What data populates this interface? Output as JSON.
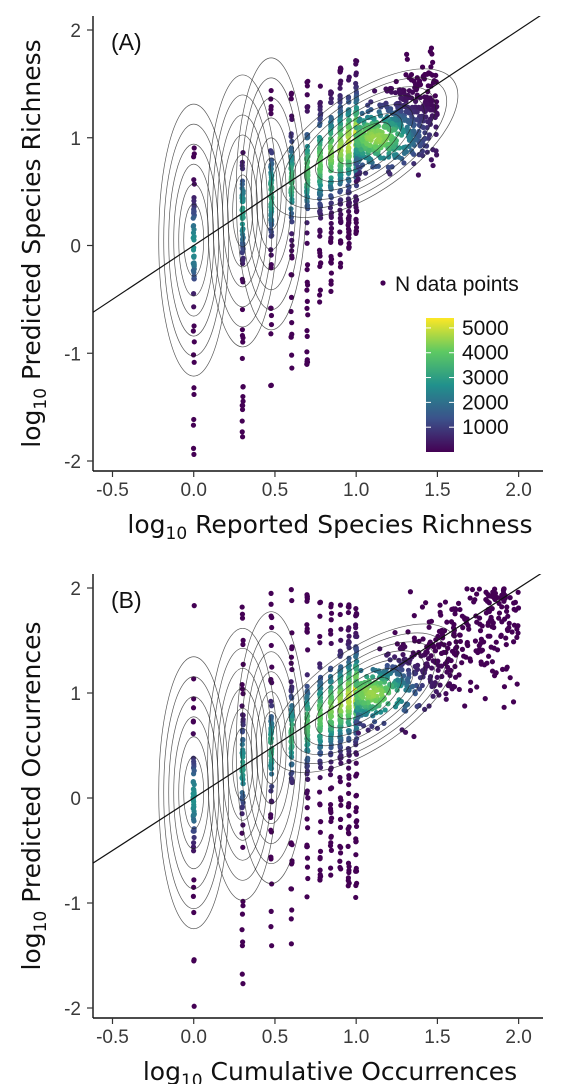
{
  "chart_data": [
    {
      "type": "scatter",
      "panel_label": "(A)",
      "xlabel_main": "log",
      "xlabel_sub": "10",
      "xlabel_rest": " Reported Species Richness",
      "ylabel_main": "log",
      "ylabel_sub": "10",
      "ylabel_rest": " Predicted Species Richness",
      "xlim": [
        -0.62,
        2.15
      ],
      "ylim": [
        -2.05,
        2.2
      ],
      "x_ticks": [
        -0.5,
        0.0,
        0.5,
        1.0,
        1.5,
        2.0
      ],
      "x_tick_labels": [
        "-0.5",
        "0.0",
        "0.5",
        "1.0",
        "1.5",
        "2.0"
      ],
      "y_ticks": [
        -2,
        -1,
        0,
        1,
        2
      ],
      "y_tick_labels": [
        "-2",
        "-1",
        "0",
        "1",
        "2"
      ],
      "reference_line": {
        "slope": 1,
        "intercept": 0
      },
      "density_contours": true,
      "color_scale": "viridis",
      "legend": {
        "title": "N data points",
        "ticks": [
          1000,
          2000,
          3000,
          4000,
          5000
        ],
        "tick_labels": [
          "1000",
          "2000",
          "3000",
          "4000",
          "5000"
        ],
        "range": [
          0,
          5400
        ],
        "colors": [
          "#440154",
          "#3b528b",
          "#21918c",
          "#5ec962",
          "#fde725"
        ],
        "placement": "right"
      },
      "discrete_columns": [
        0.0,
        0.301,
        0.477,
        0.602,
        0.699,
        0.778,
        0.845,
        0.903,
        0.954,
        1.0
      ],
      "column_ranges": [
        [
          -1.95,
          1.12
        ],
        [
          -1.95,
          1.2
        ],
        [
          -1.4,
          1.45
        ],
        [
          -1.2,
          1.55
        ],
        [
          -1.15,
          1.55
        ],
        [
          -0.55,
          1.6
        ],
        [
          -0.45,
          1.6
        ],
        [
          -0.2,
          1.65
        ],
        [
          -0.05,
          1.7
        ],
        [
          0.1,
          1.72
        ]
      ],
      "continuous_cloud": {
        "x_range": [
          1.0,
          1.5
        ],
        "center": [
          1.12,
          1.0
        ],
        "peak_density": 5000,
        "max_y": 1.95,
        "min_y": 0.2
      }
    },
    {
      "type": "scatter",
      "panel_label": "(B)",
      "xlabel_main": "log",
      "xlabel_sub": "10",
      "xlabel_rest": " Cumulative Occurrences",
      "ylabel_main": "log",
      "ylabel_sub": "10",
      "ylabel_rest": " Predicted Occurrences",
      "xlim": [
        -0.62,
        2.15
      ],
      "ylim": [
        -2.05,
        2.05
      ],
      "x_ticks": [
        -0.5,
        0.0,
        0.5,
        1.0,
        1.5,
        2.0
      ],
      "x_tick_labels": [
        "-0.5",
        "0.0",
        "0.5",
        "1.0",
        "1.5",
        "2.0"
      ],
      "y_ticks": [
        -2,
        -1,
        0,
        1,
        2
      ],
      "y_tick_labels": [
        "-2",
        "-1",
        "0",
        "1",
        "2"
      ],
      "reference_line": {
        "slope": 1,
        "intercept": 0
      },
      "density_contours": true,
      "color_scale": "viridis",
      "discrete_columns": [
        0.0,
        0.301,
        0.477,
        0.602,
        0.699,
        0.778,
        0.845,
        0.903,
        0.954,
        1.0
      ],
      "column_ranges": [
        [
          -2.0,
          1.95
        ],
        [
          -1.95,
          1.95
        ],
        [
          -1.55,
          1.95
        ],
        [
          -1.4,
          2.0
        ],
        [
          -1.0,
          1.95
        ],
        [
          -0.9,
          1.9
        ],
        [
          -0.8,
          1.85
        ],
        [
          -0.75,
          1.85
        ],
        [
          -0.9,
          1.85
        ],
        [
          -1.15,
          1.9
        ]
      ],
      "continuous_cloud": {
        "x_range": [
          1.0,
          2.0
        ],
        "center": [
          1.1,
          1.0
        ],
        "peak_density": 5000,
        "max_y": 2.0,
        "min_y": -1.3
      }
    }
  ]
}
